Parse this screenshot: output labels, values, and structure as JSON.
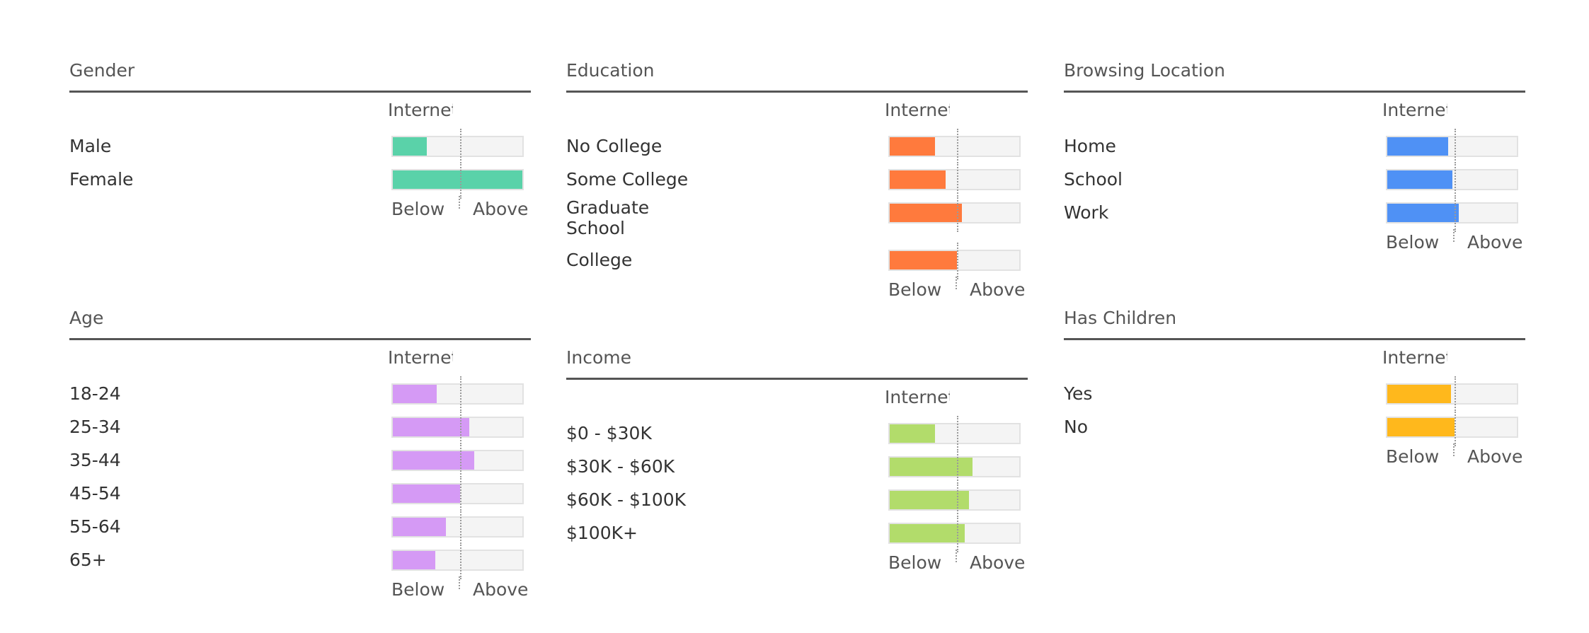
{
  "chart_data": [
    {
      "type": "bar",
      "title": "Gender",
      "color": "#5ad2a9",
      "reference_label": "Internet Average",
      "scale_labels": {
        "below": "Below",
        "above": "Above"
      },
      "categories": [
        "Male",
        "Female"
      ],
      "values": [
        0.26,
        1.0
      ]
    },
    {
      "type": "bar",
      "title": "Education",
      "color": "#ff7a3d",
      "reference_label": "Internet Average",
      "scale_labels": {
        "below": "Below",
        "above": "Above"
      },
      "categories": [
        "No College",
        "Some College",
        "Graduate\nSchool",
        "College"
      ],
      "values": [
        0.35,
        0.43,
        0.56,
        0.52
      ]
    },
    {
      "type": "bar",
      "title": "Browsing Location",
      "color": "#4f91f5",
      "reference_label": "Internet Average",
      "scale_labels": {
        "below": "Below",
        "above": "Above"
      },
      "categories": [
        "Home",
        "School",
        "Work"
      ],
      "values": [
        0.47,
        0.5,
        0.55
      ]
    },
    {
      "type": "bar",
      "title": "Age",
      "color": "#d59af5",
      "reference_label": "Internet Average",
      "scale_labels": {
        "below": "Below",
        "above": "Above"
      },
      "categories": [
        "18-24",
        "25-34",
        "35-44",
        "45-54",
        "55-64",
        "65+"
      ],
      "values": [
        0.34,
        0.59,
        0.63,
        0.52,
        0.41,
        0.33
      ]
    },
    {
      "type": "bar",
      "title": "Income",
      "color": "#b2dc6b",
      "reference_label": "Internet Average",
      "scale_labels": {
        "below": "Below",
        "above": "Above"
      },
      "categories": [
        "$0 - $30K",
        "$30K - $60K",
        "$60K - $100K",
        "$100K+"
      ],
      "values": [
        0.35,
        0.64,
        0.61,
        0.58
      ]
    },
    {
      "type": "bar",
      "title": "Has Children",
      "color": "#ffb81c",
      "reference_label": "Internet Average",
      "scale_labels": {
        "below": "Below",
        "above": "Above"
      },
      "categories": [
        "Yes",
        "No"
      ],
      "values": [
        0.49,
        0.52
      ]
    }
  ]
}
